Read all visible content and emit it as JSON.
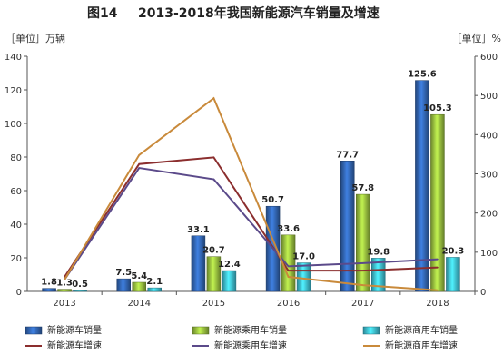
{
  "chart_data": {
    "type": "bar",
    "title_prefix": "图14",
    "title": "2013-2018年我国新能源汽车销量及增速",
    "left_axis_label": "［单位］万辆",
    "right_axis_label": "［单位］%",
    "categories": [
      "2013",
      "2014",
      "2015",
      "2016",
      "2017",
      "2018"
    ],
    "ylim_left": [
      0,
      140
    ],
    "yticks_left": [
      0,
      20,
      40,
      60,
      80,
      100,
      120,
      140
    ],
    "ylim_right": [
      0,
      600
    ],
    "yticks_right": [
      0,
      100,
      200,
      300,
      400,
      500,
      600
    ],
    "grid": false,
    "legend_position": "bottom",
    "bar_series": [
      {
        "name": "新能源车销量",
        "values": [
          1.8,
          7.5,
          33.1,
          50.7,
          77.7,
          125.6
        ],
        "labels": [
          "1.8",
          "7.5",
          "33.1",
          "50.7",
          "77.7",
          "125.6"
        ],
        "color": "#2f5fa7"
      },
      {
        "name": "新能源乘用车销量",
        "values": [
          1.3,
          5.4,
          20.7,
          33.6,
          57.8,
          105.3
        ],
        "labels": [
          "1.3",
          "5.4",
          "20.7",
          "33.6",
          "57.8",
          "105.3"
        ],
        "color": "#8fb33b"
      },
      {
        "name": "新能源商用车销量",
        "values": [
          0.5,
          2.1,
          12.4,
          17.0,
          19.8,
          20.3
        ],
        "labels": [
          "0.5",
          "2.1",
          "12.4",
          "17.0",
          "19.8",
          "20.3"
        ],
        "color": "#3bb3c8"
      }
    ],
    "line_series": [
      {
        "name": "新能源车增速",
        "values": [
          37,
          325,
          342,
          53,
          53,
          61
        ],
        "color": "#8b2e2e"
      },
      {
        "name": "新能源乘用车增速",
        "values": [
          30,
          315,
          286,
          64,
          72,
          82
        ],
        "color": "#5b4a8a"
      },
      {
        "name": "新能源商用车增速",
        "values": [
          30,
          348,
          493,
          37,
          16,
          3
        ],
        "color": "#c98a3b"
      }
    ]
  }
}
